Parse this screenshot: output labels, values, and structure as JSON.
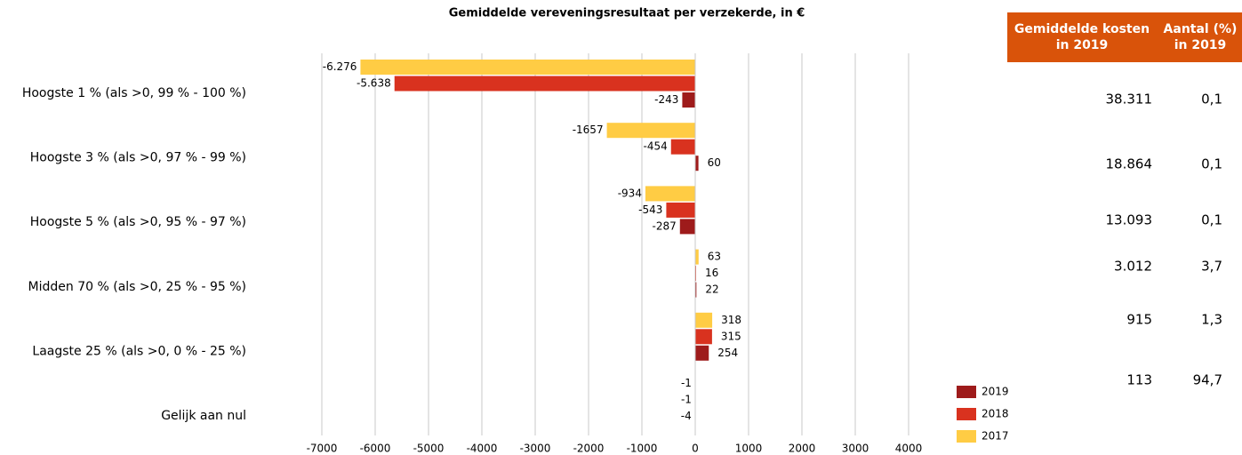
{
  "chart_data": {
    "type": "hbar",
    "title": "Gemiddelde vereveningsresultaat per verzekerde, in €",
    "categories": [
      "Hoogste 1 %  (als >0, 99 % - 100 %)",
      "Hoogste 3 %  (als >0, 97 % - 99 %)",
      "Hoogste 5 %  (als >0, 95 % - 97 %)",
      "Midden 70 % (als >0, 25 % - 95 %)",
      "Laagste 25 % (als >0, 0 % - 25 %)",
      "Gelijk aan nul"
    ],
    "series": [
      {
        "name": "2019",
        "color": "#9e1b1b",
        "values": [
          -243,
          60,
          -287,
          22,
          254,
          -4
        ],
        "value_labels": [
          "-243",
          "60",
          "-287",
          "22",
          "254",
          "-4"
        ]
      },
      {
        "name": "2018",
        "color": "#d9321f",
        "values": [
          -5638,
          -454,
          -543,
          16,
          315,
          -1
        ],
        "value_labels": [
          "-5.638",
          "-454",
          "-543",
          "16",
          "315",
          "-1"
        ]
      },
      {
        "name": "2017",
        "color": "#ffcc44",
        "values": [
          -6276,
          -1657,
          -934,
          63,
          318,
          -1
        ],
        "value_labels": [
          "-6.276",
          "-1657",
          "-934",
          "63",
          "318",
          "-1"
        ]
      }
    ],
    "xlim": [
      -7000,
      4000
    ],
    "xticks": [
      -7000,
      -6000,
      -5000,
      -4000,
      -3000,
      -2000,
      -1000,
      0,
      1000,
      2000,
      3000,
      4000
    ],
    "grid": true,
    "legend": "lower right"
  },
  "table": {
    "header": [
      [
        "Gemiddelde kosten",
        "in 2019"
      ],
      [
        "Aantal (%)",
        "in 2019"
      ]
    ],
    "rows": [
      [
        "38.311",
        "0,1"
      ],
      [
        "18.864",
        "0,1"
      ],
      [
        "13.093",
        "0,1"
      ],
      [
        "3.012",
        "3,7"
      ],
      [
        "915",
        "1,3"
      ],
      [
        "113",
        "94,7"
      ]
    ]
  }
}
